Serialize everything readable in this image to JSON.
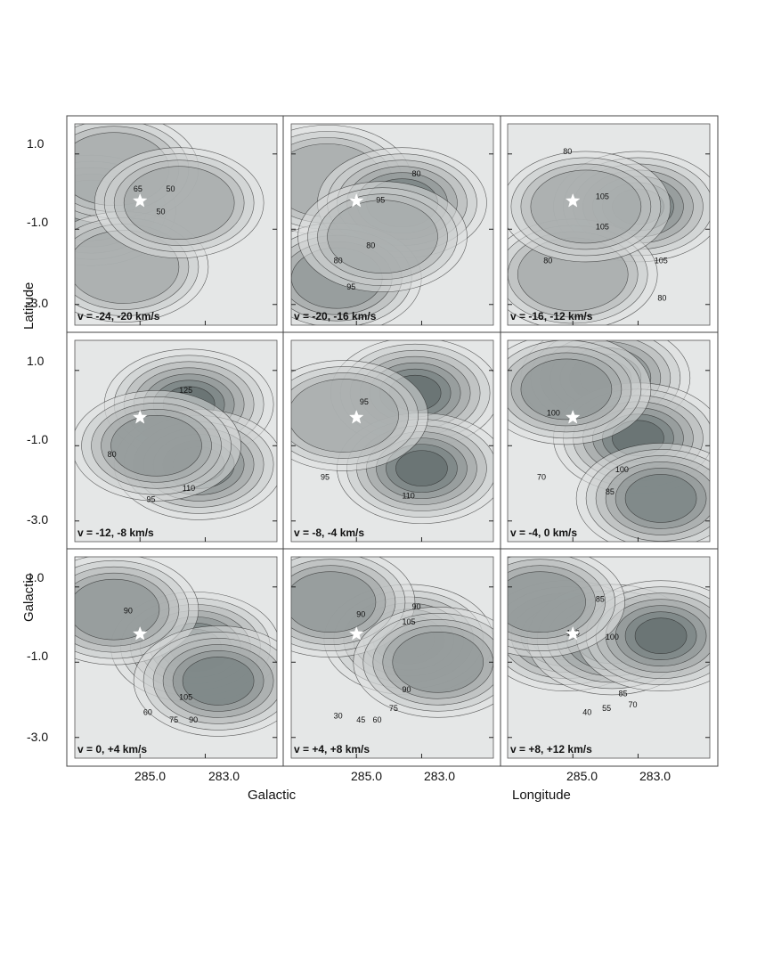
{
  "chart_data": {
    "type": "heatmap",
    "title": "",
    "x_axis": {
      "ticks": [
        "285.0",
        "283.0"
      ],
      "labels": [
        "Galactic",
        "Longitude"
      ]
    },
    "y_axis": {
      "ticks": [
        "1.0",
        "-1.0",
        "-3.0"
      ],
      "labels": [
        "Latitude",
        "Galactic"
      ]
    },
    "panels": [
      {
        "velocity_label": "v = -24, -20 km/s",
        "contour_labels": [
          {
            "text": "65",
            "x": 285.2,
            "y": 0.0
          },
          {
            "text": "50",
            "x": 284.2,
            "y": 0.0
          },
          {
            "text": "50",
            "x": 284.5,
            "y": -0.6
          }
        ],
        "blobs": [
          {
            "x": 286.5,
            "y": -0.5,
            "level": 5
          },
          {
            "x": 285.8,
            "y": 0.6,
            "level": 4
          },
          {
            "x": 285.5,
            "y": -2.0,
            "level": 4
          },
          {
            "x": 283.8,
            "y": -0.3,
            "level": 4
          }
        ]
      },
      {
        "velocity_label": "v = -20, -16 km/s",
        "contour_labels": [
          {
            "text": "80",
            "x": 283.3,
            "y": 0.4
          },
          {
            "text": "95",
            "x": 284.4,
            "y": -0.3
          },
          {
            "text": "80",
            "x": 285.7,
            "y": -1.9
          },
          {
            "text": "80",
            "x": 284.7,
            "y": -1.5
          },
          {
            "text": "95",
            "x": 285.3,
            "y": -2.6
          }
        ],
        "blobs": [
          {
            "x": 285.9,
            "y": 0.3,
            "level": 4
          },
          {
            "x": 283.6,
            "y": -0.3,
            "level": 6
          },
          {
            "x": 285.6,
            "y": -2.3,
            "level": 5
          },
          {
            "x": 284.2,
            "y": -1.2,
            "level": 4
          }
        ]
      },
      {
        "velocity_label": "v = -16, -12 km/s",
        "contour_labels": [
          {
            "text": "80",
            "x": 285.3,
            "y": 1.0
          },
          {
            "text": "105",
            "x": 284.3,
            "y": -0.2
          },
          {
            "text": "105",
            "x": 284.3,
            "y": -1.0
          },
          {
            "text": "80",
            "x": 285.9,
            "y": -1.9
          },
          {
            "text": "105",
            "x": 282.5,
            "y": -1.9
          },
          {
            "text": "80",
            "x": 282.4,
            "y": -2.9
          }
        ],
        "blobs": [
          {
            "x": 283.0,
            "y": -0.4,
            "level": 7
          },
          {
            "x": 285.0,
            "y": -2.2,
            "level": 4
          },
          {
            "x": 284.6,
            "y": -0.4,
            "level": 4
          }
        ]
      },
      {
        "velocity_label": "v = -12, -8 km/s",
        "contour_labels": [
          {
            "text": "125",
            "x": 283.8,
            "y": 0.4
          },
          {
            "text": "80",
            "x": 286.0,
            "y": -1.3
          },
          {
            "text": "110",
            "x": 283.7,
            "y": -2.2
          },
          {
            "text": "95",
            "x": 284.8,
            "y": -2.5
          }
        ],
        "blobs": [
          {
            "x": 283.5,
            "y": 0.1,
            "level": 7
          },
          {
            "x": 283.2,
            "y": -1.5,
            "level": 7
          },
          {
            "x": 284.5,
            "y": -1.0,
            "level": 5
          }
        ]
      },
      {
        "velocity_label": "v = -8, -4 km/s",
        "contour_labels": [
          {
            "text": "95",
            "x": 284.9,
            "y": 0.1
          },
          {
            "text": "95",
            "x": 286.1,
            "y": -1.9
          },
          {
            "text": "110",
            "x": 283.6,
            "y": -2.4
          }
        ],
        "blobs": [
          {
            "x": 283.2,
            "y": 0.4,
            "level": 7
          },
          {
            "x": 283.0,
            "y": -1.6,
            "level": 7
          },
          {
            "x": 285.4,
            "y": -0.2,
            "level": 4
          }
        ]
      },
      {
        "velocity_label": "v = -4, 0 km/s",
        "contour_labels": [
          {
            "text": "100",
            "x": 285.8,
            "y": -0.2
          },
          {
            "text": "70",
            "x": 286.1,
            "y": -1.9
          },
          {
            "text": "100",
            "x": 283.7,
            "y": -1.7
          },
          {
            "text": "85",
            "x": 284.0,
            "y": -2.3
          }
        ],
        "blobs": [
          {
            "x": 284.0,
            "y": 0.8,
            "level": 7
          },
          {
            "x": 283.0,
            "y": -0.8,
            "level": 7
          },
          {
            "x": 282.3,
            "y": -2.4,
            "level": 6
          },
          {
            "x": 285.2,
            "y": 0.5,
            "level": 5
          }
        ]
      },
      {
        "velocity_label": "v = 0, +4 km/s",
        "contour_labels": [
          {
            "text": "90",
            "x": 285.5,
            "y": 0.3
          },
          {
            "text": "105",
            "x": 283.8,
            "y": -2.0
          },
          {
            "text": "60",
            "x": 284.9,
            "y": -2.4
          },
          {
            "text": "75",
            "x": 284.1,
            "y": -2.6
          },
          {
            "text": "90",
            "x": 283.5,
            "y": -2.6
          }
        ],
        "blobs": [
          {
            "x": 283.3,
            "y": -0.6,
            "level": 7
          },
          {
            "x": 285.8,
            "y": 0.4,
            "level": 5
          },
          {
            "x": 282.6,
            "y": -1.5,
            "level": 6
          }
        ]
      },
      {
        "velocity_label": "v = +4, +8 km/s",
        "contour_labels": [
          {
            "text": "90",
            "x": 285.0,
            "y": 0.2
          },
          {
            "text": "90",
            "x": 283.3,
            "y": 0.4
          },
          {
            "text": "105",
            "x": 283.6,
            "y": 0.0
          },
          {
            "text": "90",
            "x": 283.6,
            "y": -1.8
          },
          {
            "text": "75",
            "x": 284.0,
            "y": -2.3
          },
          {
            "text": "60",
            "x": 284.5,
            "y": -2.6
          },
          {
            "text": "45",
            "x": 285.0,
            "y": -2.6
          },
          {
            "text": "30",
            "x": 285.7,
            "y": -2.5
          }
        ],
        "blobs": [
          {
            "x": 283.4,
            "y": -0.4,
            "level": 7
          },
          {
            "x": 285.8,
            "y": 0.6,
            "level": 5
          },
          {
            "x": 282.5,
            "y": -1.0,
            "level": 5
          }
        ]
      },
      {
        "velocity_label": "v = +8, +12 km/s",
        "contour_labels": [
          {
            "text": "85",
            "x": 284.3,
            "y": 0.6
          },
          {
            "text": "100",
            "x": 285.2,
            "y": -0.3
          },
          {
            "text": "100",
            "x": 284.0,
            "y": -0.4
          },
          {
            "text": "85",
            "x": 283.6,
            "y": -1.9
          },
          {
            "text": "70",
            "x": 283.3,
            "y": -2.2
          },
          {
            "text": "55",
            "x": 284.1,
            "y": -2.3
          },
          {
            "text": "40",
            "x": 284.7,
            "y": -2.4
          }
        ],
        "blobs": [
          {
            "x": 285.2,
            "y": -0.3,
            "level": 7
          },
          {
            "x": 283.8,
            "y": -0.4,
            "level": 6
          },
          {
            "x": 282.3,
            "y": -0.3,
            "level": 7
          },
          {
            "x": 286.0,
            "y": 0.6,
            "level": 5
          }
        ]
      }
    ],
    "marker": {
      "name": "star-marker",
      "x": 285.0,
      "y": -0.25
    },
    "colors": {
      "low": "#f4f5f5",
      "high": "#3b4848",
      "contour": "#222222"
    },
    "grid": false
  }
}
